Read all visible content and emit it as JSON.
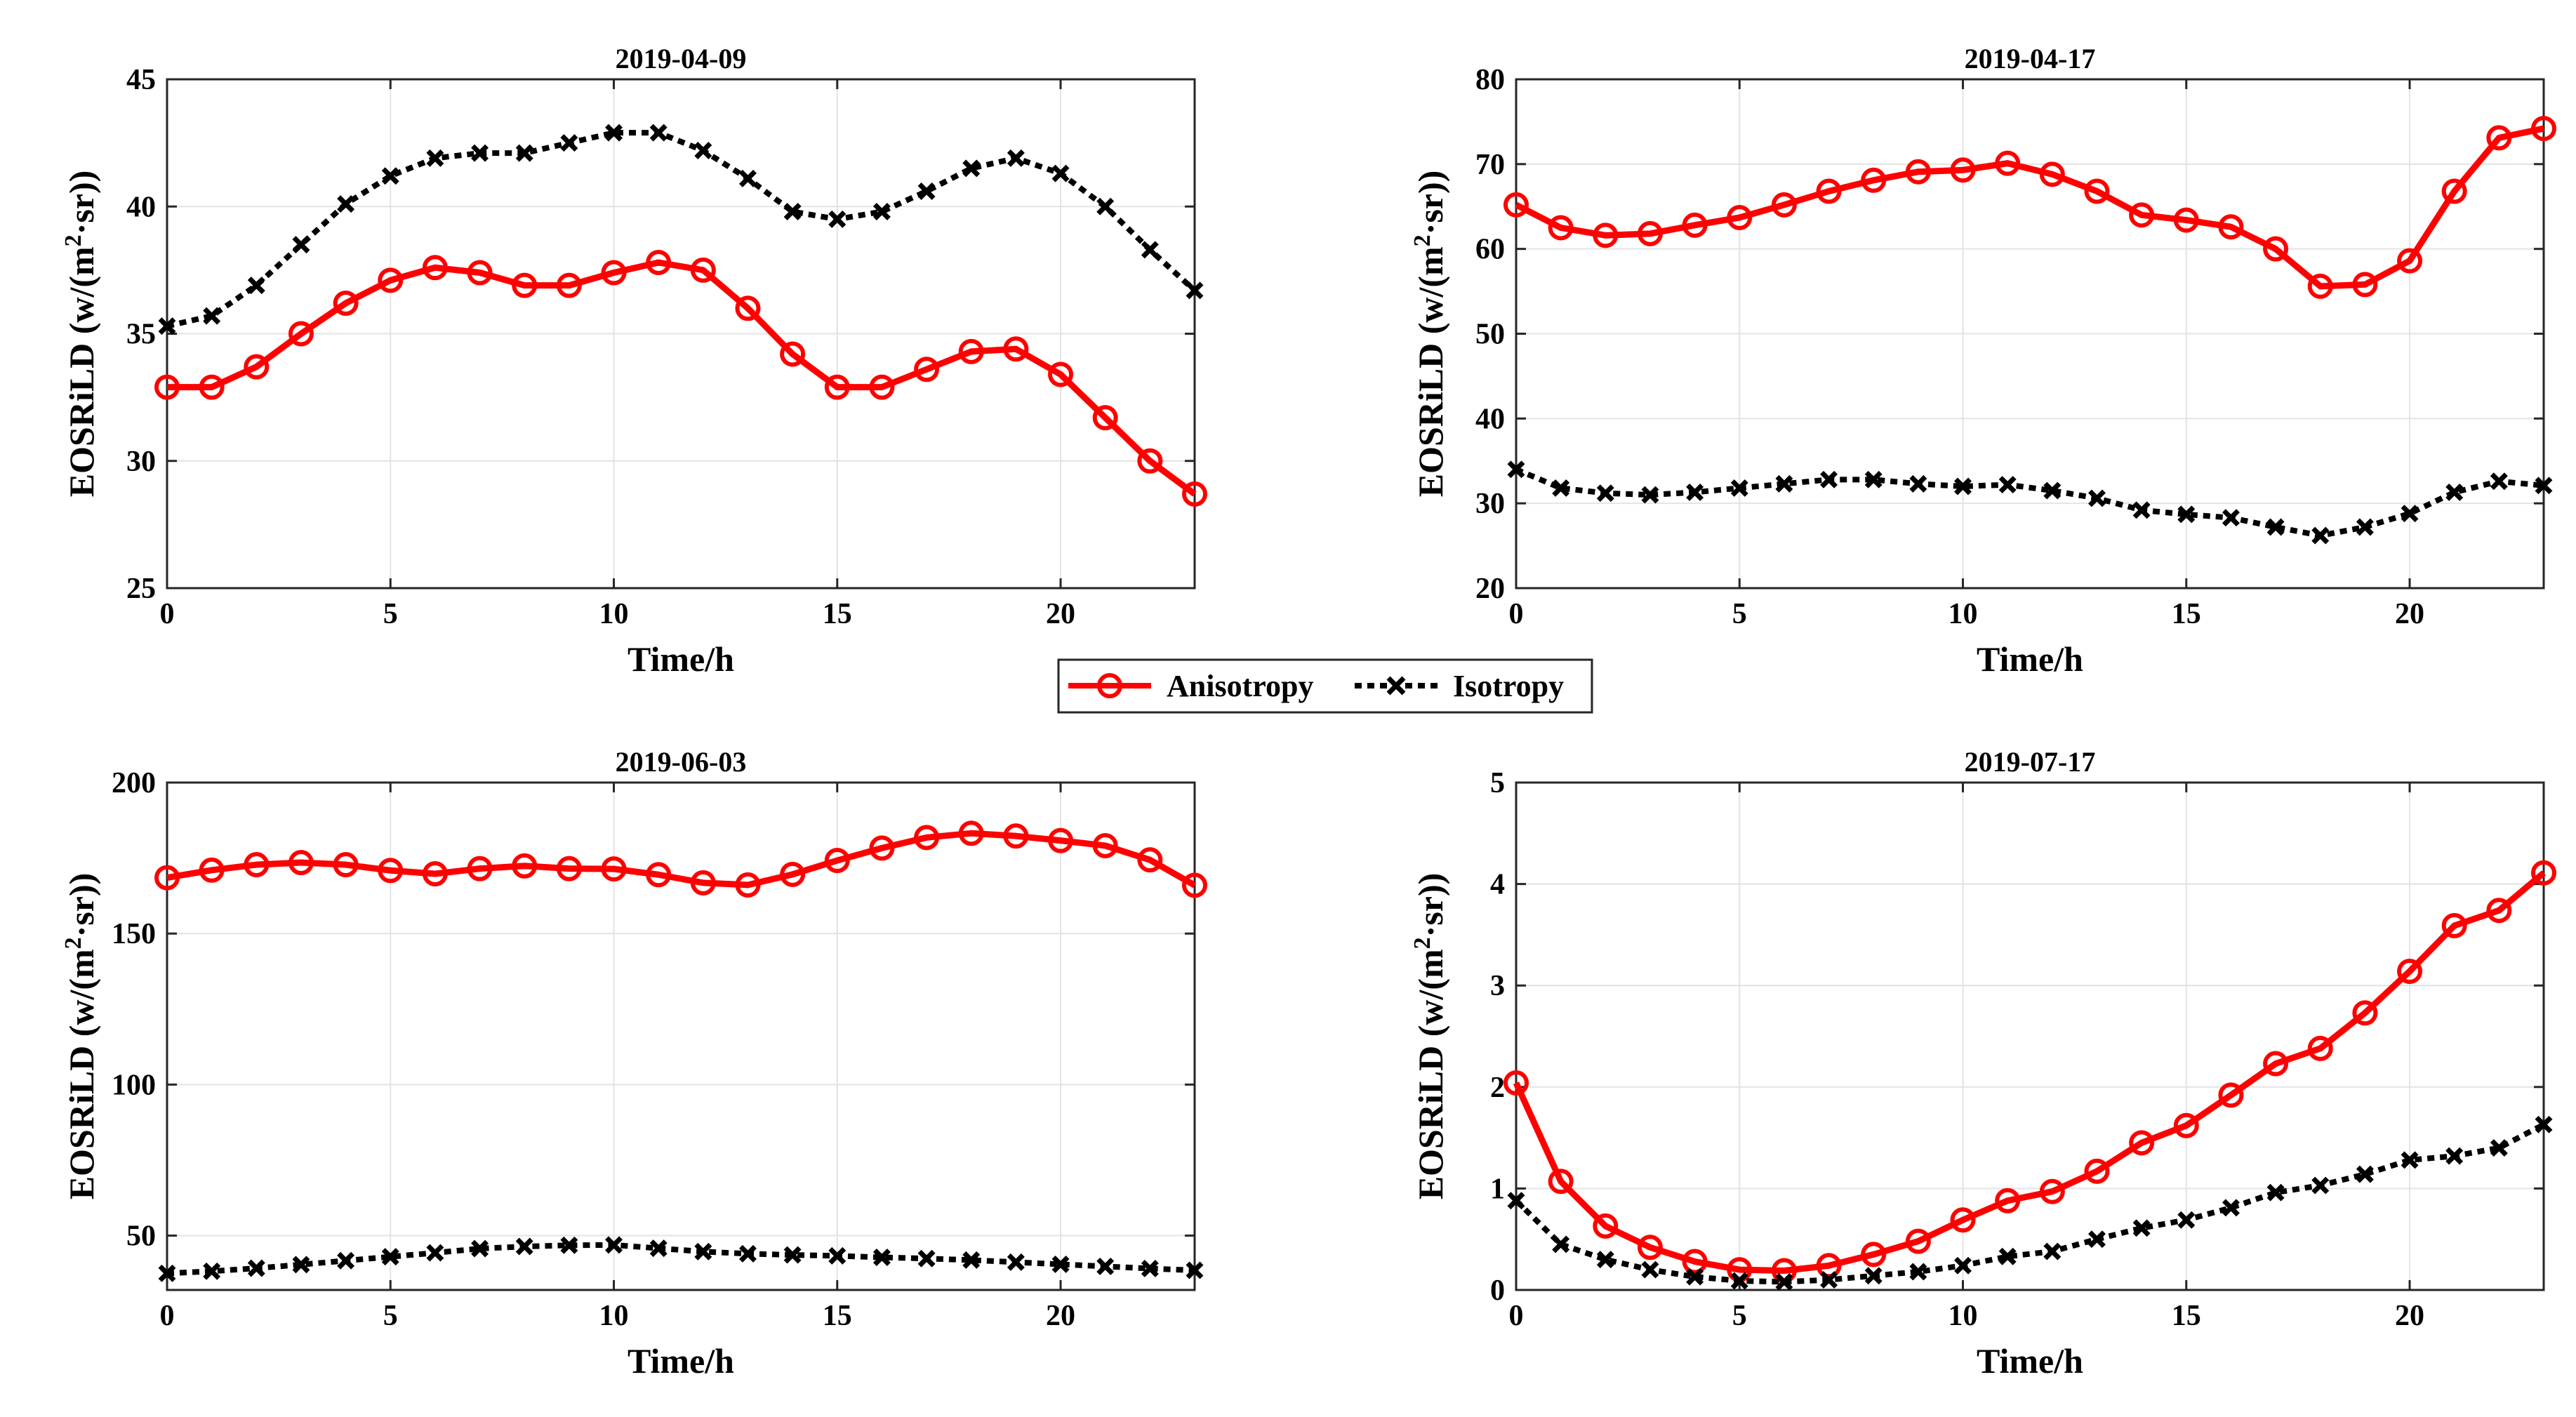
{
  "colors": {
    "anisotropy": "#ff0000",
    "isotropy": "#000000",
    "grid": "#e3e3e3",
    "axis": "#262626"
  },
  "legend": {
    "entries": [
      "Anisotropy",
      "Isotropy"
    ]
  },
  "chart_data": [
    {
      "type": "line",
      "title": "2019-04-09",
      "xlabel": "Time/h",
      "ylabel": "EOSRiLD (w/(m²·sr))",
      "ylabel_main": "EOSRiLD (w/(m",
      "ylabel_sup": "2",
      "ylabel_tail": "·sr))",
      "xlim": [
        0,
        23
      ],
      "ylim": [
        25,
        45
      ],
      "xticks": [
        0,
        5,
        10,
        15,
        20
      ],
      "yticks": [
        25,
        30,
        35,
        40,
        45
      ],
      "x": [
        0,
        1,
        2,
        3,
        4,
        5,
        6,
        7,
        8,
        9,
        10,
        11,
        12,
        13,
        14,
        15,
        16,
        17,
        18,
        19,
        20,
        21,
        22,
        23
      ],
      "series": [
        {
          "name": "Anisotropy",
          "values": [
            32.9,
            32.9,
            33.7,
            35.0,
            36.2,
            37.1,
            37.6,
            37.4,
            36.9,
            36.9,
            37.4,
            37.8,
            37.5,
            36.0,
            34.2,
            32.9,
            32.9,
            33.6,
            34.3,
            34.4,
            33.4,
            31.7,
            30.0,
            28.7
          ]
        },
        {
          "name": "Isotropy",
          "values": [
            35.3,
            35.7,
            36.9,
            38.5,
            40.1,
            41.2,
            41.9,
            42.1,
            42.1,
            42.5,
            42.9,
            42.9,
            42.2,
            41.1,
            39.8,
            39.5,
            39.8,
            40.6,
            41.5,
            41.9,
            41.3,
            40.0,
            38.3,
            36.7
          ]
        }
      ]
    },
    {
      "type": "line",
      "title": "2019-04-17",
      "xlabel": "Time/h",
      "ylabel": "EOSRiLD (w/(m²·sr))",
      "ylabel_main": "EOSRiLD (w/(m",
      "ylabel_sup": "2",
      "ylabel_tail": "·sr))",
      "xlim": [
        0,
        23
      ],
      "ylim": [
        20,
        80
      ],
      "xticks": [
        0,
        5,
        10,
        15,
        20
      ],
      "yticks": [
        20,
        30,
        40,
        50,
        60,
        70,
        80
      ],
      "x": [
        0,
        1,
        2,
        3,
        4,
        5,
        6,
        7,
        8,
        9,
        10,
        11,
        12,
        13,
        14,
        15,
        16,
        17,
        18,
        19,
        20,
        21,
        22,
        23
      ],
      "series": [
        {
          "name": "Anisotropy",
          "values": [
            65.2,
            62.5,
            61.6,
            61.8,
            62.8,
            63.7,
            65.2,
            66.8,
            68.1,
            69.1,
            69.3,
            70.1,
            68.8,
            66.8,
            64.0,
            63.4,
            62.6,
            60.0,
            55.6,
            55.8,
            58.6,
            66.8,
            73.1,
            74.2
          ]
        },
        {
          "name": "Isotropy",
          "values": [
            34.0,
            31.8,
            31.2,
            31.0,
            31.3,
            31.8,
            32.3,
            32.8,
            32.8,
            32.3,
            32.0,
            32.2,
            31.5,
            30.6,
            29.2,
            28.7,
            28.3,
            27.2,
            26.2,
            27.2,
            28.8,
            31.3,
            32.6,
            32.1
          ]
        }
      ]
    },
    {
      "type": "line",
      "title": "2019-06-03",
      "xlabel": "Time/h",
      "ylabel": "EOSRiLD (w/(m²·sr))",
      "ylabel_main": "EOSRiLD (w/(m",
      "ylabel_sup": "2",
      "ylabel_tail": "·sr))",
      "xlim": [
        0,
        23
      ],
      "ylim": [
        32,
        200
      ],
      "xticks": [
        0,
        5,
        10,
        15,
        20
      ],
      "yticks": [
        50,
        100,
        150,
        200
      ],
      "x": [
        0,
        1,
        2,
        3,
        4,
        5,
        6,
        7,
        8,
        9,
        10,
        11,
        12,
        13,
        14,
        15,
        16,
        17,
        18,
        19,
        20,
        21,
        22,
        23
      ],
      "series": [
        {
          "name": "Anisotropy",
          "values": [
            168.5,
            171.0,
            172.8,
            173.5,
            172.8,
            170.9,
            169.8,
            171.5,
            172.4,
            171.5,
            171.4,
            169.5,
            166.8,
            166.1,
            169.6,
            174.2,
            178.3,
            181.8,
            183.2,
            182.3,
            180.8,
            179.1,
            174.4,
            166.0
          ]
        },
        {
          "name": "Isotropy",
          "values": [
            37.5,
            38.2,
            39.2,
            40.4,
            41.7,
            43.0,
            44.3,
            45.7,
            46.4,
            46.8,
            46.9,
            45.8,
            44.7,
            44.0,
            43.6,
            43.3,
            42.8,
            42.4,
            41.9,
            41.2,
            40.5,
            39.8,
            39.1,
            38.5
          ]
        }
      ]
    },
    {
      "type": "line",
      "title": "2019-07-17",
      "xlabel": "Time/h",
      "ylabel": "EOSRiLD (w/(m²·sr))",
      "ylabel_main": "EOSRiLD (w/(m",
      "ylabel_sup": "2",
      "ylabel_tail": "·sr))",
      "xlim": [
        0,
        23
      ],
      "ylim": [
        0,
        5
      ],
      "xticks": [
        0,
        5,
        10,
        15,
        20
      ],
      "yticks": [
        0,
        1,
        2,
        3,
        4,
        5
      ],
      "x": [
        0,
        1,
        2,
        3,
        4,
        5,
        6,
        7,
        8,
        9,
        10,
        11,
        12,
        13,
        14,
        15,
        16,
        17,
        18,
        19,
        20,
        21,
        22,
        23
      ],
      "series": [
        {
          "name": "Anisotropy",
          "values": [
            2.04,
            1.07,
            0.63,
            0.42,
            0.28,
            0.2,
            0.19,
            0.24,
            0.35,
            0.48,
            0.69,
            0.88,
            0.97,
            1.17,
            1.45,
            1.62,
            1.92,
            2.23,
            2.38,
            2.73,
            3.14,
            3.59,
            3.74,
            4.11
          ]
        },
        {
          "name": "Isotropy",
          "values": [
            0.88,
            0.45,
            0.3,
            0.2,
            0.13,
            0.09,
            0.08,
            0.1,
            0.14,
            0.18,
            0.24,
            0.33,
            0.38,
            0.5,
            0.61,
            0.69,
            0.81,
            0.96,
            1.03,
            1.14,
            1.28,
            1.32,
            1.4,
            1.63
          ]
        }
      ]
    }
  ]
}
